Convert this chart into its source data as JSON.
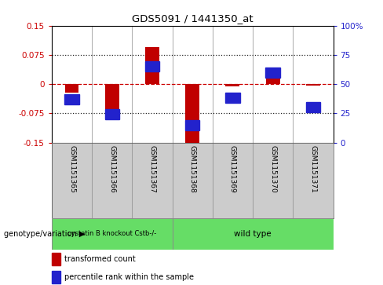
{
  "title": "GDS5091 / 1441350_at",
  "samples": [
    "GSM1151365",
    "GSM1151366",
    "GSM1151367",
    "GSM1151368",
    "GSM1151369",
    "GSM1151370",
    "GSM1151371"
  ],
  "red_values": [
    -0.022,
    -0.09,
    0.095,
    -0.155,
    -0.005,
    0.018,
    -0.003
  ],
  "blue_values_pct": [
    37,
    24,
    65,
    15,
    38,
    60,
    30
  ],
  "ylim_left": [
    -0.15,
    0.15
  ],
  "ylim_right": [
    0,
    100
  ],
  "yticks_left": [
    -0.15,
    -0.075,
    0,
    0.075,
    0.15
  ],
  "yticks_right": [
    0,
    25,
    50,
    75,
    100
  ],
  "hline_dotted": [
    0.075,
    -0.075
  ],
  "red_color": "#C00000",
  "blue_color": "#2222CC",
  "dashed_zero_color": "#CC0000",
  "dotted_color": "#222222",
  "group1_label": "cystatin B knockout Cstb-/-",
  "group2_label": "wild type",
  "group1_indices": [
    0,
    1,
    2
  ],
  "group2_indices": [
    3,
    4,
    5,
    6
  ],
  "group_color": "#66DD66",
  "genotype_label": "genotype/variation",
  "legend_red": "transformed count",
  "legend_blue": "percentile rank within the sample",
  "bar_width": 0.35,
  "bg_color": "#FFFFFF",
  "plot_bg": "#FFFFFF",
  "label_bg": "#CCCCCC",
  "left_tick_color": "#CC0000",
  "right_tick_color": "#2222CC",
  "spine_color": "#555555"
}
